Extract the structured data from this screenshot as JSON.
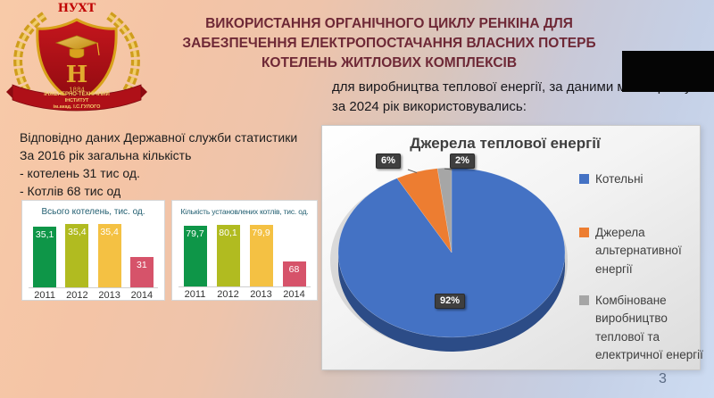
{
  "slide": {
    "title": "ВИКОРИСТАННЯ ОРГАНІЧНОГО ЦИКЛУ РЕНКІНА ДЛЯ ЗАБЕЗПЕЧЕННЯ ЕЛЕКТРОПОСТАЧАННЯ ВЛАСНИХ ПОТЕРБ КОТЕЛЕНЬ ЖИТЛОВИХ КОМПЛЕКСІВ",
    "page_number": "3"
  },
  "logo": {
    "acronym": "НУХТ",
    "year": "1884",
    "ribbon_lines": [
      "ІНЖЕНЕРНО-ТЕХНІЧНИЙ",
      "ІНСТИТУТ",
      "ім.акад. І.С.ГУЛОГО"
    ]
  },
  "intro": {
    "line1": "для виробництва теплової енергії, за даними моніторингу",
    "line2": "за 2024 рік використовувались:"
  },
  "stats": {
    "lines": [
      "Відповідно даних Державної служби статистики",
      "За 2016 рік загальна кількість",
      "- котелень 31 тис од.",
      "- Котлів 68 тис од"
    ]
  },
  "chart_data": [
    {
      "type": "bar",
      "title": "Всього котелень, тис. од.",
      "categories": [
        "2011",
        "2012",
        "2013",
        "2014"
      ],
      "values": [
        35.1,
        35.4,
        35.4,
        31
      ],
      "labels": [
        "35,1",
        "35,4",
        "35,4",
        "31"
      ],
      "bar_colors": [
        "#0e9648",
        "#b1bb20",
        "#f4c143",
        "#d6536a"
      ],
      "ylim": [
        27,
        36
      ],
      "grid": false,
      "legend": false
    },
    {
      "type": "bar",
      "title": "Кількість установлених котлів, тис. од.",
      "categories": [
        "2011",
        "2012",
        "2013",
        "2014"
      ],
      "values": [
        79.7,
        80.1,
        79.9,
        68
      ],
      "labels": [
        "79,7",
        "80,1",
        "79,9",
        "68"
      ],
      "bar_colors": [
        "#0e9648",
        "#b1bb20",
        "#f4c143",
        "#d6536a"
      ],
      "ylim": [
        60,
        82
      ],
      "grid": false,
      "legend": false
    },
    {
      "type": "pie",
      "title": "Джерела теплової енергії",
      "legend_position": "right",
      "slices": [
        {
          "label": "Котельні",
          "pct": 92,
          "display": "92%",
          "color": "#4472c4"
        },
        {
          "label": "Джерела альтернативної енергії",
          "pct": 6,
          "display": "6%",
          "color": "#ed7d31"
        },
        {
          "label": "Комбіноване виробництво теплової та електричної енергії",
          "pct": 2,
          "display": "2%",
          "color": "#a6a6a6"
        }
      ],
      "side_color": "#2c4c87"
    }
  ]
}
